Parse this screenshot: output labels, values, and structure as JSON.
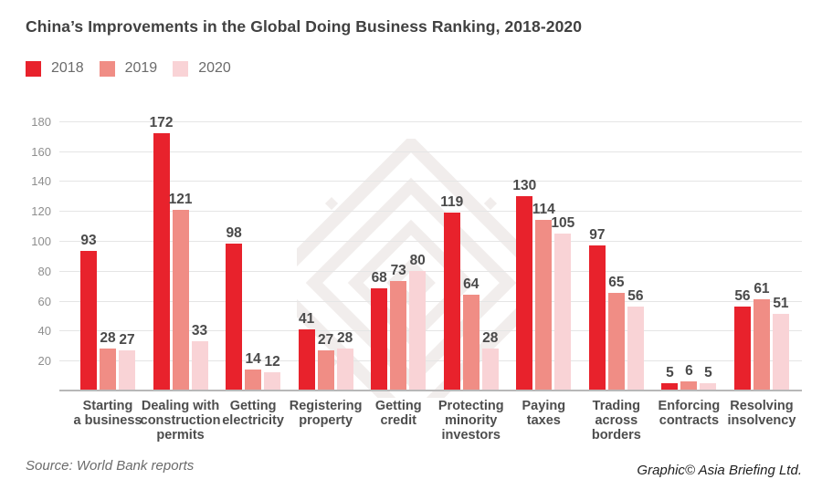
{
  "chart_data": {
    "type": "bar",
    "title": "China’s Improvements in the Global Doing Business Ranking, 2018-2020",
    "categories": [
      "Starting\na business",
      "Dealing with\nconstruction\npermits",
      "Getting\nelectricity",
      "Registering\nproperty",
      "Getting\ncredit",
      "Protecting\nminority\ninvestors",
      "Paying\ntaxes",
      "Trading\nacross\nborders",
      "Enforcing\ncontracts",
      "Resolving\ninsolvency"
    ],
    "series": [
      {
        "name": "2018",
        "color": "#e8222c",
        "values": [
          93,
          172,
          98,
          41,
          68,
          119,
          130,
          97,
          5,
          56
        ]
      },
      {
        "name": "2019",
        "color": "#f08d85",
        "values": [
          28,
          121,
          14,
          27,
          73,
          64,
          114,
          65,
          6,
          61
        ]
      },
      {
        "name": "2020",
        "color": "#f9d3d6",
        "values": [
          27,
          33,
          12,
          28,
          80,
          28,
          105,
          56,
          5,
          51
        ]
      }
    ],
    "ylabel": "",
    "xlabel": "",
    "ylim": [
      0,
      180
    ],
    "ytick_step": 20,
    "grid": true,
    "legend_position": "top-left",
    "bar_value_labels": true
  },
  "source_note": "Source: World Bank reports",
  "credit_note": "Graphic© Asia Briefing Ltd.",
  "watermark_icon": "asia-briefing-knot-logo",
  "colors": {
    "title_text": "#414141",
    "value_label_text": "#4a4a4a",
    "axis_text": "#8e8e8e",
    "gridline": "#e5e5e5",
    "baseline": "#b8b8b8",
    "watermark": "#f1edec"
  }
}
